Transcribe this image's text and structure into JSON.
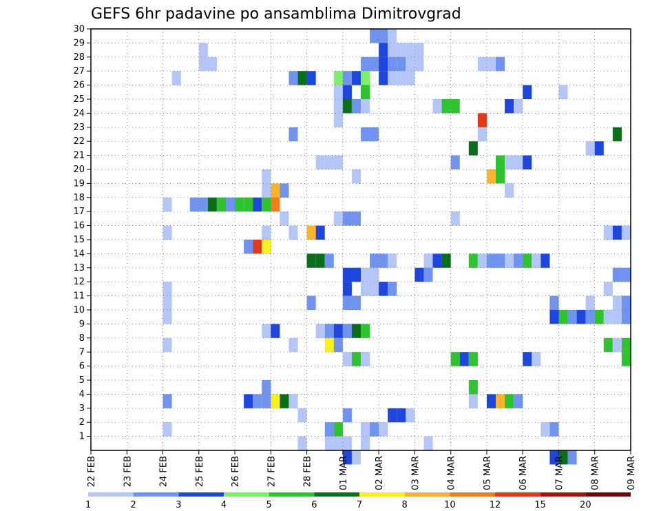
{
  "chart_data": {
    "type": "heatmap",
    "title": "GEFS 6hr padavine po ansamblima Dimitrovgrad",
    "xlabel": "",
    "ylabel": "",
    "x_ticks": [
      "22 FEB",
      "23 FEB",
      "24 FEB",
      "25 FEB",
      "26 FEB",
      "27 FEB",
      "28 FEB",
      "01 MAR",
      "02 MAR",
      "03 MAR",
      "04 MAR",
      "05 MAR",
      "06 MAR",
      "07 MAR",
      "08 MAR",
      "09 MAR"
    ],
    "y_ticks": [
      1,
      2,
      3,
      4,
      5,
      6,
      7,
      8,
      9,
      10,
      11,
      12,
      13,
      14,
      15,
      16,
      17,
      18,
      19,
      20,
      21,
      22,
      23,
      24,
      25,
      26,
      27,
      28,
      29,
      30
    ],
    "xlim": [
      "22 FEB 00Z",
      "09 MAR 00Z"
    ],
    "ylim": [
      0,
      30
    ],
    "time_step_hours": 6,
    "grid": true,
    "grid_style": "dotted",
    "colorbar": {
      "labels": [
        "1",
        "2",
        "3",
        "4",
        "5",
        "6",
        "7",
        "8",
        "10",
        "12",
        "15",
        "20"
      ],
      "colors": [
        "#b4c6f8",
        "#6f93ee",
        "#1e46dc",
        "#7fee6a",
        "#2fc42f",
        "#0a6e1a",
        "#f5f01e",
        "#fdb32e",
        "#f47c1a",
        "#e2381a",
        "#aa1010",
        "#6a0a0a"
      ]
    },
    "levels_note": "each cell = one 6-hour step; value = precipitation class index into colorbar (0=light blue .. 11=darkest red)",
    "cells": [
      {
        "m": 29,
        "x": [
          [
            31,
            1,
            1
          ],
          [
            32,
            1,
            1
          ],
          [
            33,
            0,
            0
          ]
        ]
      },
      {
        "m": 28,
        "x": [
          [
            12,
            0,
            0
          ],
          [
            32,
            2,
            1
          ],
          [
            33,
            0,
            1
          ],
          [
            34,
            0,
            1
          ],
          [
            35,
            0,
            0
          ],
          [
            36,
            0,
            0
          ]
        ]
      },
      {
        "m": 27,
        "x": [
          [
            12,
            0,
            0
          ],
          [
            13,
            0,
            0
          ],
          [
            30,
            1,
            0
          ],
          [
            31,
            1,
            2
          ],
          [
            32,
            2,
            2
          ],
          [
            33,
            1,
            1
          ],
          [
            34,
            1,
            1
          ],
          [
            35,
            0,
            0
          ],
          [
            36,
            0,
            0
          ],
          [
            43,
            0,
            0
          ],
          [
            44,
            0,
            0
          ],
          [
            45,
            1,
            1
          ]
        ]
      },
      {
        "m": 26,
        "x": [
          [
            9,
            0,
            0
          ],
          [
            22,
            1,
            1
          ],
          [
            23,
            5,
            2
          ],
          [
            24,
            2,
            2
          ],
          [
            27,
            3,
            9
          ],
          [
            28,
            1,
            0
          ],
          [
            29,
            2,
            5
          ],
          [
            30,
            3,
            6
          ],
          [
            32,
            2,
            1
          ],
          [
            33,
            0,
            1
          ],
          [
            34,
            0,
            0
          ],
          [
            35,
            0,
            0
          ]
        ]
      },
      {
        "m": 25,
        "x": [
          [
            27,
            0,
            0
          ],
          [
            28,
            2,
            5
          ],
          [
            30,
            4,
            2
          ],
          [
            48,
            2,
            2
          ],
          [
            52,
            0,
            0
          ]
        ]
      },
      {
        "m": 24,
        "x": [
          [
            27,
            0,
            0
          ],
          [
            28,
            5,
            5
          ],
          [
            29,
            1,
            2
          ],
          [
            30,
            0,
            0
          ],
          [
            38,
            0,
            0
          ],
          [
            39,
            4,
            4
          ],
          [
            40,
            4,
            4
          ],
          [
            46,
            2,
            2
          ],
          [
            47,
            0,
            0
          ]
        ]
      },
      {
        "m": 23,
        "x": [
          [
            27,
            0,
            0
          ],
          [
            43,
            9,
            9
          ]
        ]
      },
      {
        "m": 22,
        "x": [
          [
            22,
            1,
            1
          ],
          [
            30,
            1,
            1
          ],
          [
            31,
            1,
            1
          ],
          [
            43,
            0,
            0
          ],
          [
            58,
            5,
            5
          ]
        ]
      },
      {
        "m": 21,
        "x": [
          [
            42,
            5,
            5
          ],
          [
            55,
            0,
            0
          ],
          [
            56,
            2,
            2
          ]
        ]
      },
      {
        "m": 20,
        "x": [
          [
            25,
            0,
            0
          ],
          [
            26,
            0,
            0
          ],
          [
            27,
            0,
            0
          ],
          [
            40,
            1,
            1
          ],
          [
            45,
            4,
            4
          ],
          [
            46,
            0,
            0
          ],
          [
            47,
            0,
            0
          ],
          [
            48,
            2,
            2
          ]
        ]
      },
      {
        "m": 19,
        "x": [
          [
            19,
            0,
            0
          ],
          [
            29,
            0,
            0
          ],
          [
            44,
            7,
            7
          ],
          [
            45,
            4,
            4
          ]
        ]
      },
      {
        "m": 18,
        "x": [
          [
            19,
            0,
            0
          ],
          [
            20,
            7,
            7
          ],
          [
            21,
            1,
            1
          ],
          [
            46,
            0,
            0
          ]
        ]
      },
      {
        "m": 17,
        "x": [
          [
            8,
            0,
            0
          ],
          [
            11,
            1,
            1
          ],
          [
            12,
            1,
            1
          ],
          [
            13,
            5,
            5
          ],
          [
            14,
            4,
            4
          ],
          [
            15,
            1,
            1
          ],
          [
            16,
            4,
            4
          ],
          [
            17,
            4,
            4
          ],
          [
            18,
            2,
            2
          ],
          [
            19,
            4,
            4
          ],
          [
            20,
            8,
            8
          ]
        ]
      },
      {
        "m": 16,
        "x": [
          [
            21,
            0,
            0
          ],
          [
            27,
            0,
            0
          ],
          [
            28,
            1,
            1
          ],
          [
            29,
            1,
            1
          ],
          [
            40,
            0,
            0
          ]
        ]
      },
      {
        "m": 15,
        "x": [
          [
            8,
            0,
            0
          ],
          [
            19,
            0,
            0
          ],
          [
            22,
            0,
            0
          ],
          [
            24,
            7,
            7
          ],
          [
            25,
            2,
            2
          ],
          [
            57,
            0,
            0
          ],
          [
            58,
            2,
            2
          ],
          [
            59,
            0,
            0
          ]
        ]
      },
      {
        "m": 14,
        "x": [
          [
            17,
            1,
            1
          ],
          [
            18,
            9,
            9
          ],
          [
            19,
            6,
            6
          ]
        ]
      },
      {
        "m": 13,
        "x": [
          [
            24,
            5,
            5
          ],
          [
            25,
            5,
            5
          ],
          [
            26,
            1,
            1
          ],
          [
            31,
            1,
            1
          ],
          [
            32,
            1,
            1
          ],
          [
            33,
            0,
            0
          ],
          [
            37,
            0,
            0
          ],
          [
            38,
            2,
            2
          ],
          [
            39,
            5,
            5
          ],
          [
            42,
            4,
            4
          ],
          [
            43,
            0,
            0
          ],
          [
            44,
            1,
            1
          ],
          [
            45,
            1,
            1
          ],
          [
            46,
            0,
            0
          ],
          [
            47,
            1,
            1
          ],
          [
            48,
            4,
            4
          ],
          [
            49,
            0,
            0
          ],
          [
            50,
            2,
            2
          ]
        ]
      },
      {
        "m": 12,
        "x": [
          [
            28,
            2,
            2
          ],
          [
            29,
            2,
            2
          ],
          [
            30,
            0,
            0
          ],
          [
            31,
            0,
            0
          ],
          [
            36,
            2,
            2
          ],
          [
            37,
            1,
            1
          ],
          [
            58,
            1,
            1
          ],
          [
            59,
            1,
            1
          ]
        ]
      },
      {
        "m": 11,
        "x": [
          [
            8,
            0,
            0
          ],
          [
            28,
            2,
            2
          ],
          [
            30,
            0,
            0
          ],
          [
            31,
            0,
            0
          ],
          [
            32,
            2,
            2
          ],
          [
            33,
            1,
            1
          ],
          [
            57,
            0,
            0
          ]
        ]
      },
      {
        "m": 10,
        "x": [
          [
            8,
            0,
            0
          ],
          [
            24,
            1,
            1
          ],
          [
            28,
            1,
            1
          ],
          [
            29,
            1,
            1
          ],
          [
            51,
            1,
            1
          ],
          [
            55,
            0,
            0
          ],
          [
            58,
            0,
            0
          ],
          [
            59,
            1,
            1
          ]
        ]
      },
      {
        "m": 9,
        "x": [
          [
            8,
            0,
            0
          ],
          [
            51,
            2,
            2
          ],
          [
            52,
            4,
            4
          ],
          [
            53,
            1,
            1
          ],
          [
            54,
            2,
            2
          ],
          [
            55,
            1,
            1
          ],
          [
            56,
            4,
            4
          ],
          [
            57,
            0,
            0
          ],
          [
            58,
            0,
            0
          ],
          [
            59,
            1,
            1
          ]
        ]
      },
      {
        "m": 8,
        "x": [
          [
            19,
            0,
            0
          ],
          [
            20,
            2,
            2
          ],
          [
            25,
            0,
            0
          ],
          [
            26,
            1,
            1
          ],
          [
            27,
            2,
            2
          ],
          [
            28,
            1,
            1
          ],
          [
            29,
            5,
            5
          ],
          [
            30,
            4,
            4
          ]
        ]
      },
      {
        "m": 7,
        "x": [
          [
            8,
            0,
            0
          ],
          [
            22,
            0,
            0
          ],
          [
            26,
            6,
            6
          ],
          [
            27,
            1,
            1
          ],
          [
            57,
            4,
            4
          ],
          [
            58,
            0,
            0
          ],
          [
            59,
            4,
            4
          ]
        ]
      },
      {
        "m": 6,
        "x": [
          [
            28,
            0,
            0
          ],
          [
            29,
            4,
            4
          ],
          [
            30,
            0,
            0
          ],
          [
            40,
            4,
            4
          ],
          [
            41,
            2,
            2
          ],
          [
            42,
            4,
            4
          ],
          [
            48,
            2,
            2
          ],
          [
            49,
            0,
            0
          ],
          [
            59,
            4,
            4
          ]
        ]
      },
      {
        "m": 5,
        "x": []
      },
      {
        "m": 4,
        "x": [
          [
            19,
            1,
            1
          ],
          [
            42,
            4,
            4
          ]
        ]
      },
      {
        "m": 3,
        "x": [
          [
            8,
            1,
            1
          ],
          [
            17,
            2,
            2
          ],
          [
            18,
            1,
            1
          ],
          [
            19,
            1,
            1
          ],
          [
            20,
            6,
            6
          ],
          [
            21,
            5,
            5
          ],
          [
            22,
            0,
            0
          ],
          [
            42,
            0,
            0
          ],
          [
            44,
            2,
            2
          ],
          [
            45,
            7,
            7
          ],
          [
            46,
            4,
            4
          ],
          [
            47,
            1,
            1
          ]
        ]
      },
      {
        "m": 2,
        "x": [
          [
            23,
            0,
            0
          ],
          [
            28,
            1,
            1
          ],
          [
            33,
            2,
            2
          ],
          [
            34,
            2,
            2
          ],
          [
            35,
            0,
            0
          ]
        ]
      },
      {
        "m": 1,
        "x": [
          [
            8,
            0,
            0
          ],
          [
            26,
            1,
            1
          ],
          [
            27,
            4,
            4
          ],
          [
            30,
            0,
            0
          ],
          [
            31,
            1,
            1
          ],
          [
            32,
            0,
            0
          ],
          [
            50,
            0,
            0
          ],
          [
            51,
            1,
            1
          ]
        ]
      },
      {
        "m": 0,
        "x": [
          [
            23,
            0,
            0
          ],
          [
            26,
            0,
            0
          ],
          [
            27,
            0,
            0
          ],
          [
            28,
            0,
            0
          ],
          [
            30,
            0,
            0
          ],
          [
            37,
            0,
            0
          ]
        ]
      },
      {
        "m": -1,
        "x": [
          [
            28,
            2,
            2
          ],
          [
            29,
            0,
            0
          ],
          [
            51,
            2,
            2
          ],
          [
            52,
            5,
            5
          ],
          [
            53,
            1,
            1
          ]
        ]
      }
    ]
  }
}
